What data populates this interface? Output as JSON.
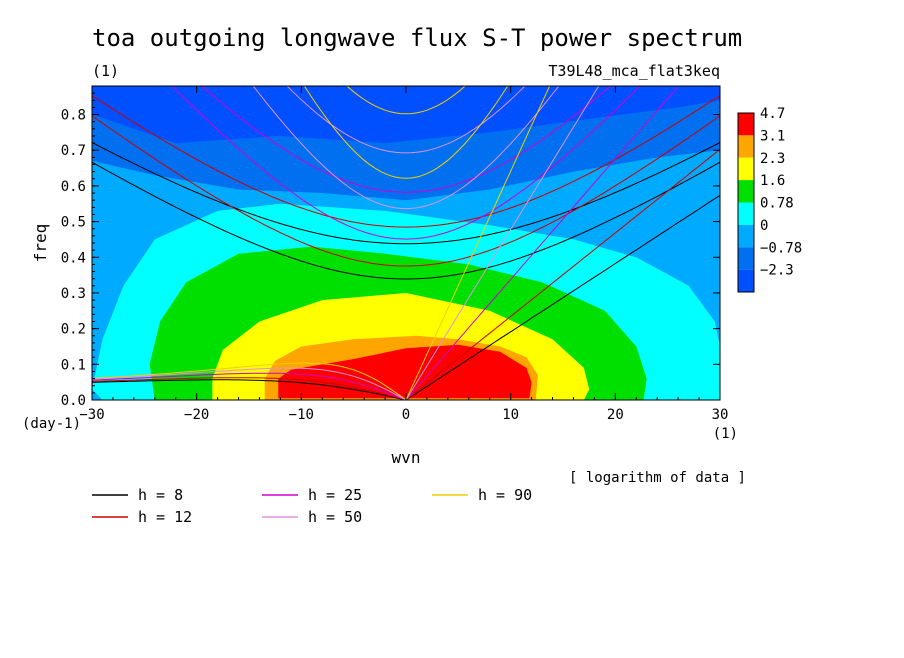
{
  "chart_data": {
    "type": "heatmap",
    "title": "toa outgoing longwave flux S-T power spectrum",
    "subtitle_left": "(1)",
    "subtitle_right": "T39L48_mca_flat3keq",
    "xlabel": "wvn",
    "ylabel": "freq",
    "x_unit": "(1)",
    "y_unit": "(day-1)",
    "xlim": [
      -30,
      30
    ],
    "ylim": [
      0,
      0.88
    ],
    "x_ticks": [
      -30,
      -20,
      -10,
      0,
      10,
      20,
      30
    ],
    "y_ticks": [
      0.0,
      0.1,
      0.2,
      0.3,
      0.4,
      0.5,
      0.6,
      0.7,
      0.8
    ],
    "x_tick_labels": [
      "−30",
      "−20",
      "−10",
      "0",
      "10",
      "20",
      "30"
    ],
    "y_tick_labels": [
      "0.0",
      "0.1",
      "0.2",
      "0.3",
      "0.4",
      "0.5",
      "0.6",
      "0.7",
      "0.8"
    ],
    "note": "[ logarithm of data ]",
    "colorbar": {
      "labels": [
        "4.7",
        "3.1",
        "2.3",
        "1.6",
        "0.78",
        "0",
        "−0.78",
        "−2.3"
      ],
      "colors": [
        "#ff0000",
        "#ffa500",
        "#ffff00",
        "#00e000",
        "#00ffff",
        "#00aaff",
        "#0070f0",
        "#0050ff"
      ]
    },
    "fill_levels": [
      {
        "level": "−2.3",
        "color": "#0050ff"
      },
      {
        "level": "−0.78",
        "color": "#0070f0"
      },
      {
        "level": "0",
        "color": "#00aaff"
      },
      {
        "level": "0.78",
        "color": "#00ffff"
      },
      {
        "level": "1.6",
        "color": "#00e000"
      },
      {
        "level": "2.3",
        "color": "#ffff00"
      },
      {
        "level": "3.1",
        "color": "#ffa500"
      },
      {
        "level": "4.7",
        "color": "#ff0000"
      }
    ],
    "dispersion_curves": [
      {
        "name": "h =  8",
        "h": 8,
        "color": "#000000"
      },
      {
        "name": "h = 12",
        "h": 12,
        "color": "#d00000"
      },
      {
        "name": "h = 25",
        "h": 25,
        "color": "#d000d0"
      },
      {
        "name": "h = 50",
        "h": 50,
        "color": "#e090e0"
      },
      {
        "name": "h = 90",
        "h": 90,
        "color": "#f0d000"
      }
    ]
  }
}
